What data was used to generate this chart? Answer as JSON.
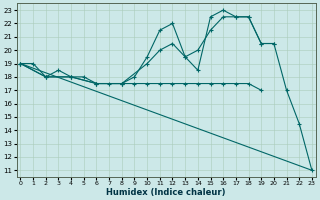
{
  "xlabel": "Humidex (Indice chaleur)",
  "bg_color": "#cce8e8",
  "line_color": "#006666",
  "xlim": [
    -0.3,
    23.3
  ],
  "ylim": [
    10.5,
    23.5
  ],
  "xticks": [
    0,
    1,
    2,
    3,
    4,
    5,
    6,
    7,
    8,
    9,
    10,
    11,
    12,
    13,
    14,
    15,
    16,
    17,
    18,
    19,
    20,
    21,
    22,
    23
  ],
  "yticks": [
    11,
    12,
    13,
    14,
    15,
    16,
    17,
    18,
    19,
    20,
    21,
    22,
    23
  ],
  "lines": [
    {
      "x": [
        0,
        23
      ],
      "y": [
        19,
        11
      ],
      "markers": false
    },
    {
      "x": [
        0,
        1,
        2,
        3,
        4,
        5,
        6,
        7,
        8,
        9,
        10,
        11,
        12,
        13,
        14,
        15,
        16,
        17,
        18,
        19
      ],
      "y": [
        19,
        19,
        18,
        18.5,
        18,
        18,
        17.5,
        17.5,
        17.5,
        17.5,
        17.5,
        17.5,
        17.5,
        17.5,
        17.5,
        17.5,
        17.5,
        17.5,
        17.5,
        17.0
      ],
      "markers": true
    },
    {
      "x": [
        0,
        2,
        4,
        6,
        8,
        9,
        10,
        11,
        12,
        13,
        14,
        15,
        16,
        17,
        18,
        19,
        20
      ],
      "y": [
        19,
        18,
        18,
        17.5,
        17.5,
        18,
        19.5,
        21.5,
        22,
        19.5,
        18.5,
        22.5,
        23,
        22.5,
        22.5,
        20.5,
        20.5
      ],
      "markers": true
    },
    {
      "x": [
        0,
        2,
        4,
        6,
        8,
        10,
        11,
        12,
        13,
        14,
        15,
        16,
        17,
        18,
        19,
        20,
        21,
        22,
        23
      ],
      "y": [
        19,
        18,
        18,
        17.5,
        17.5,
        19,
        20,
        20.5,
        19.5,
        20,
        21.5,
        22.5,
        22.5,
        22.5,
        20.5,
        20.5,
        17,
        14.5,
        11
      ],
      "markers": true
    }
  ]
}
